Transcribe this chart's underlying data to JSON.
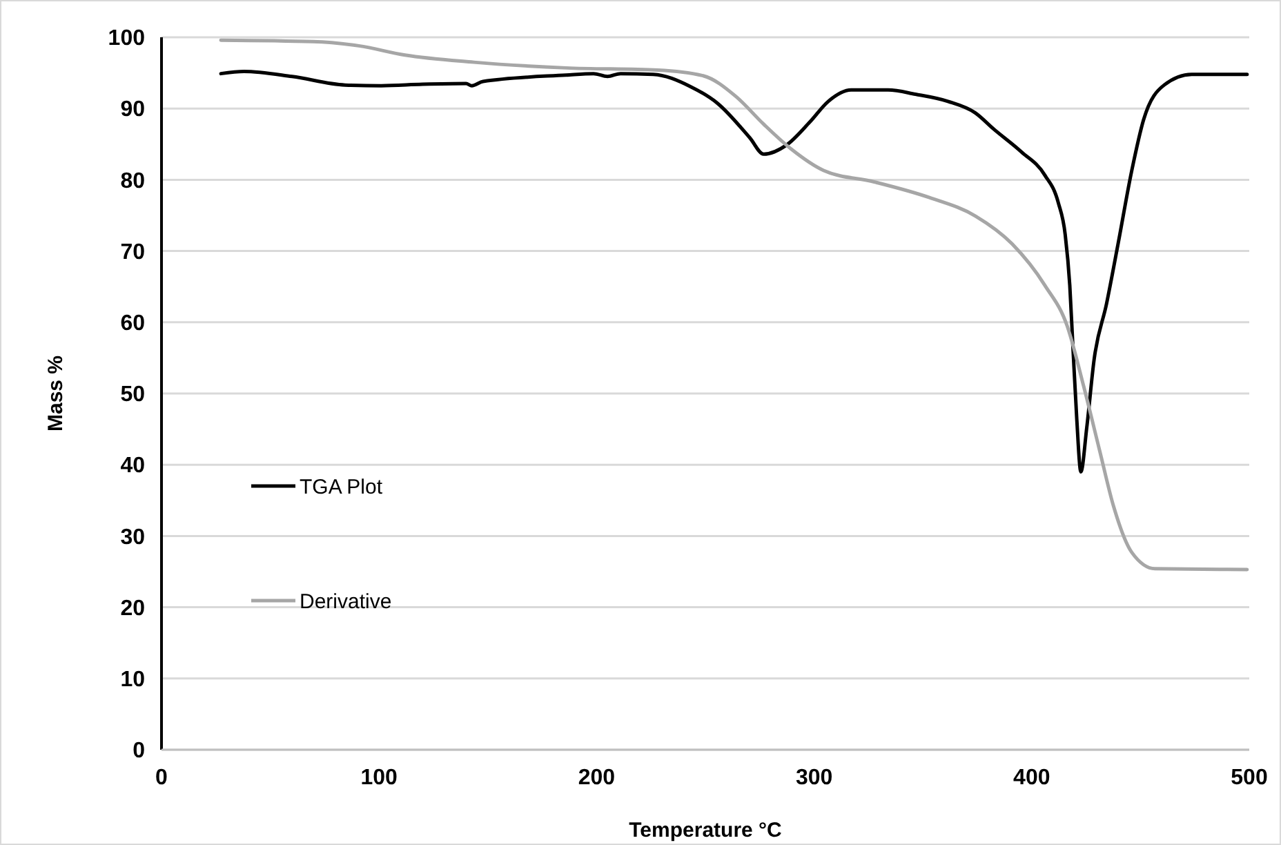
{
  "chart_data": {
    "type": "line",
    "xlabel": "Temperature °C",
    "ylabel": "Mass %",
    "xlim": [
      0,
      500
    ],
    "xticks": [
      0,
      100,
      200,
      300,
      400,
      500
    ],
    "ylim": [
      0,
      100
    ],
    "yticks": [
      0,
      10,
      20,
      30,
      40,
      50,
      60,
      70,
      80,
      90,
      100
    ],
    "grid": "y",
    "legend": "left",
    "marker": "none",
    "line_style": "solid",
    "series": [
      {
        "name": "TGA Plot",
        "color": "#000000",
        "x": [
          27.3,
          37.9,
          60,
          84.4,
          101,
          120,
          140,
          142.6,
          147.8,
          186,
          198.6,
          205,
          211,
          226,
          243,
          255.7,
          270.4,
          276.8,
          287.4,
          298,
          306.5,
          317,
          334,
          346.6,
          361.5,
          374,
          382.6,
          395.3,
          405.9,
          412.2,
          415.4,
          417.5,
          419,
          420.7,
          422.6,
          425.3,
          428.7,
          434.4,
          439.7,
          446,
          451.4,
          460.9,
          473.5,
          499
        ],
        "values": [
          94.9,
          95.2,
          94.5,
          93.3,
          93.2,
          93.4,
          93.5,
          93.2,
          93.8,
          94.7,
          94.9,
          94.5,
          94.9,
          94.8,
          93.1,
          90.7,
          85.9,
          83.6,
          84.9,
          88.1,
          91,
          92.6,
          92.6,
          92,
          91,
          89.4,
          87.1,
          83.9,
          80.7,
          76.8,
          72.3,
          65.2,
          56.2,
          46.5,
          39,
          45.2,
          54.8,
          62.6,
          71,
          81.3,
          88.4,
          93.3,
          94.8,
          94.8
        ]
      },
      {
        "name": "Derivative",
        "color": "#a6a6a6",
        "x": [
          27.3,
          69.6,
          90.7,
          111.9,
          143.6,
          186,
          228,
          249,
          264,
          276.8,
          289.5,
          304.4,
          327.6,
          353,
          374.2,
          391,
          406,
          416.4,
          423.9,
          431.3,
          437.6,
          446,
          456.7,
          499
        ],
        "values": [
          99.6,
          99.4,
          98.8,
          97.5,
          96.5,
          95.7,
          95.4,
          94.6,
          91.7,
          87.8,
          84.3,
          81.3,
          79.7,
          77.5,
          74.9,
          71,
          65.2,
          59.4,
          51,
          41.9,
          34.2,
          27.7,
          25.4,
          25.3
        ]
      }
    ]
  }
}
